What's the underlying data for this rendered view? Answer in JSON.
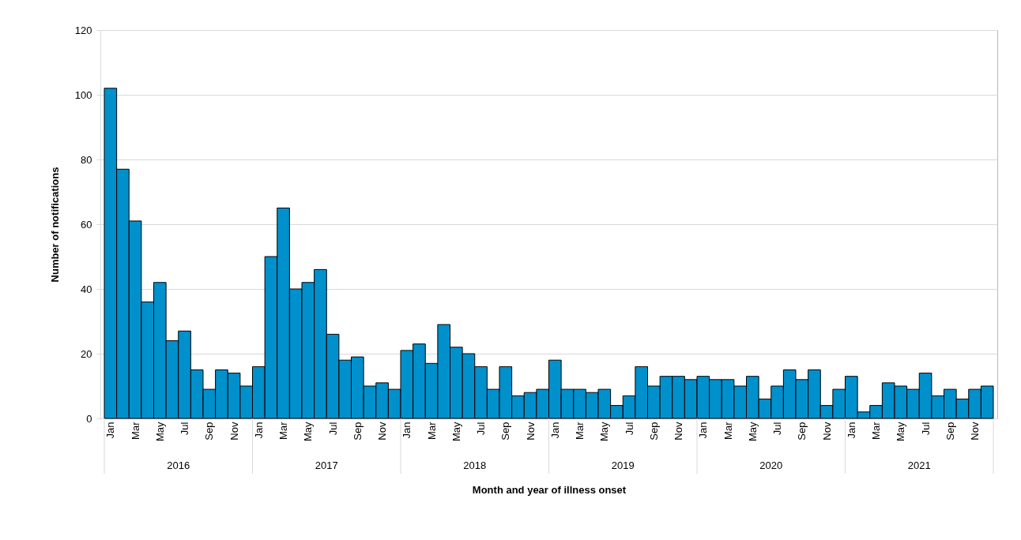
{
  "chart_data": {
    "type": "bar",
    "xlabel": "Month and year of illness onset",
    "ylabel": "Number of notifications",
    "categories": [
      "Jan",
      null,
      "Mar",
      null,
      "May",
      null,
      "Jul",
      null,
      "Sep",
      null,
      "Nov",
      null,
      "Jan",
      null,
      "Mar",
      null,
      "May",
      null,
      "Jul",
      null,
      "Sep",
      null,
      "Nov",
      null,
      "Jan",
      null,
      "Mar",
      null,
      "May",
      null,
      "Jul",
      null,
      "Sep",
      null,
      "Nov",
      null,
      "Jan",
      null,
      "Mar",
      null,
      "May",
      null,
      "Jul",
      null,
      "Sep",
      null,
      "Nov",
      null,
      "Jan",
      null,
      "Mar",
      null,
      "May",
      null,
      "Jul",
      null,
      "Sep",
      null,
      "Nov",
      null,
      "Jan",
      null,
      "Mar",
      null,
      "May",
      null,
      "Jul",
      null,
      "Sep",
      null,
      "Nov",
      null
    ],
    "values": [
      102,
      77,
      61,
      36,
      42,
      24,
      27,
      15,
      9,
      15,
      14,
      10,
      16,
      50,
      65,
      40,
      42,
      46,
      26,
      18,
      19,
      10,
      11,
      9,
      21,
      23,
      17,
      29,
      22,
      20,
      16,
      9,
      16,
      7,
      8,
      9,
      18,
      9,
      9,
      8,
      9,
      4,
      7,
      16,
      10,
      13,
      13,
      12,
      13,
      12,
      12,
      10,
      13,
      6,
      10,
      15,
      12,
      15,
      4,
      9,
      13,
      2,
      4,
      11,
      10,
      9,
      14,
      7,
      9,
      6,
      9,
      10
    ],
    "color": "#0090cc",
    "annotations": [
      "2016",
      "2017",
      "2018",
      "2019",
      "2020",
      "2021"
    ],
    "ylim": [
      0,
      120
    ],
    "yticks": [
      0,
      20,
      40,
      60,
      80,
      100,
      120
    ],
    "grid": "y"
  }
}
